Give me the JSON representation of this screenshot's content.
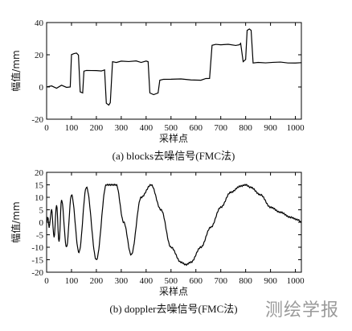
{
  "watermark": "测绘学报",
  "chart_data": [
    {
      "type": "line",
      "title": "",
      "caption": "(a) blocks去噪信号(FMC法)",
      "xlabel": "采样点",
      "ylabel": "幅值/mm",
      "xlim": [
        0,
        1024
      ],
      "ylim": [
        -20,
        40
      ],
      "xticks": [
        0,
        100,
        200,
        300,
        400,
        500,
        600,
        700,
        800,
        900,
        1000
      ],
      "yticks": [
        -20,
        0,
        20,
        40
      ],
      "grid": false,
      "legend": "none",
      "line_color": "#000000",
      "series": [
        {
          "x": [
            0,
            20,
            40,
            60,
            80,
            95,
            100,
            110,
            120,
            128,
            135,
            145,
            150,
            160,
            180,
            200,
            220,
            233,
            240,
            250,
            256,
            265,
            280,
            300,
            330,
            360,
            380,
            400,
            408,
            415,
            430,
            448,
            455,
            470,
            500,
            540,
            580,
            620,
            640,
            655,
            665,
            680,
            700,
            730,
            760,
            775,
            780,
            790,
            800,
            806,
            815,
            822,
            830,
            850,
            880,
            910,
            940,
            970,
            1000,
            1024
          ],
          "y": [
            0,
            0.5,
            -0.5,
            0.8,
            0,
            0.3,
            20,
            21,
            21,
            20,
            -3,
            -4,
            10,
            10,
            10.5,
            10,
            10,
            10.5,
            -10,
            -11,
            -10,
            16,
            15.5,
            15.8,
            15.5,
            16,
            15.5,
            15.8,
            15.5,
            -4,
            -5,
            -4,
            4,
            4.5,
            4.5,
            4.8,
            4.5,
            4.5,
            5,
            5,
            26,
            26.5,
            26,
            26.5,
            26,
            26.5,
            27,
            16,
            17,
            35,
            36,
            35,
            15,
            15.3,
            14.8,
            15,
            15.2,
            14.8,
            15,
            15
          ],
          "style": "step-like"
        }
      ]
    },
    {
      "type": "line",
      "title": "",
      "caption": "(b) doppler去噪信号(FMC法)",
      "xlabel": "采样点",
      "ylabel": "幅值/mm",
      "xlim": [
        0,
        1024
      ],
      "ylim": [
        -20,
        20
      ],
      "xticks": [
        0,
        100,
        200,
        300,
        400,
        500,
        600,
        700,
        800,
        900,
        1000
      ],
      "yticks": [
        -20,
        -15,
        -10,
        -5,
        0,
        5,
        10,
        15,
        20
      ],
      "grid": false,
      "legend": "none",
      "line_color": "#000000",
      "series": [
        {
          "x": [
            0,
            5,
            10,
            20,
            30,
            40,
            50,
            60,
            80,
            100,
            130,
            160,
            200,
            240,
            280,
            310,
            340,
            380,
            420,
            460,
            500,
            540,
            560,
            580,
            620,
            660,
            700,
            740,
            780,
            800,
            820,
            860,
            900,
            940,
            980,
            1010,
            1024
          ],
          "y": [
            0,
            2,
            -2,
            5,
            -6,
            7,
            -8,
            9,
            -10,
            11,
            -12,
            14,
            -15,
            15,
            15,
            0,
            -13,
            10,
            15,
            5,
            -10,
            -16,
            -17,
            -16,
            -10,
            -2,
            6,
            12,
            14.5,
            15,
            14,
            11,
            6,
            4,
            2,
            1,
            0
          ],
          "style": "chirp"
        }
      ]
    }
  ]
}
